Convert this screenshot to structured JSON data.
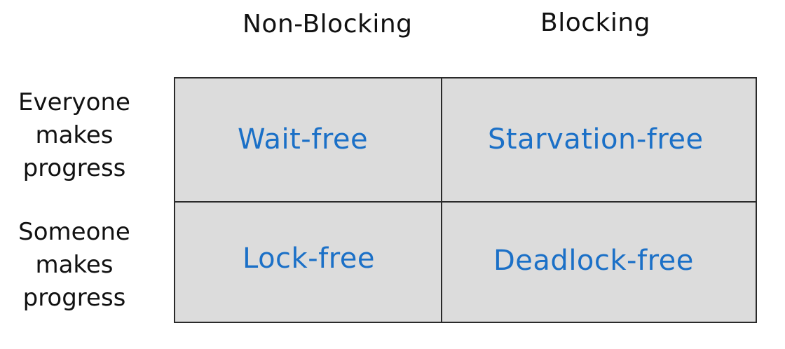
{
  "columns": {
    "non_blocking": "Non-Blocking",
    "blocking": "Blocking"
  },
  "rows": {
    "everyone": [
      "Everyone",
      "makes",
      "progress"
    ],
    "someone": [
      "Someone",
      "makes",
      "progress"
    ]
  },
  "cells": {
    "wait_free": "Wait-free",
    "starvation_free": "Starvation-free",
    "lock_free": "Lock-free",
    "deadlock_free": "Deadlock-free"
  },
  "colors": {
    "cell_text": "#1b70c7",
    "cell_background": "#dcdcdc",
    "grid_lines": "#2a2a2a"
  }
}
